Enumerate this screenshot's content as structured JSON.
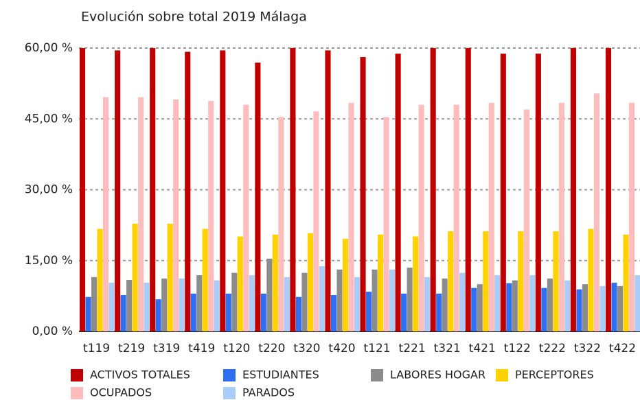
{
  "chart_data": {
    "type": "bar",
    "title": "Evolución sobre total 2019 Málaga",
    "categories": [
      "t119",
      "t219",
      "t319",
      "t419",
      "t120",
      "t220",
      "t320",
      "t420",
      "t121",
      "t221",
      "t321",
      "t421",
      "t122",
      "t222",
      "t322",
      "t422"
    ],
    "series": [
      {
        "name": "ACTIVOS TOTALES",
        "color": "#c00000",
        "values": [
          60,
          59.5,
          60,
          59.2,
          59.5,
          56.9,
          60,
          59.5,
          58.1,
          58.8,
          60,
          60,
          58.8,
          58.8,
          60,
          60
        ]
      },
      {
        "name": "ESTUDIANTES",
        "color": "#2f6ff0",
        "values": [
          7.3,
          7.7,
          6.8,
          8.0,
          8.0,
          8.0,
          7.3,
          7.7,
          8.4,
          8.0,
          8.0,
          9.2,
          10.2,
          9.2,
          8.9,
          10.3
        ]
      },
      {
        "name": "LABORES HOGAR",
        "color": "#8c8c8c",
        "values": [
          11.5,
          10.9,
          11.2,
          11.9,
          12.4,
          15.4,
          12.4,
          13.1,
          13.1,
          13.5,
          11.2,
          10.0,
          10.8,
          11.2,
          10.0,
          9.6
        ]
      },
      {
        "name": "PERCEPTORES",
        "color": "#ffd200",
        "values": [
          21.7,
          22.8,
          22.8,
          21.7,
          20.1,
          20.5,
          20.8,
          19.6,
          20.5,
          20.1,
          21.2,
          21.2,
          21.2,
          21.2,
          21.7,
          20.5
        ]
      },
      {
        "name": "OCUPADOS",
        "color": "#ffbcbc",
        "values": [
          49.6,
          49.6,
          49.1,
          48.8,
          48.0,
          45.4,
          46.6,
          48.4,
          45.4,
          48.0,
          48.0,
          48.4,
          47.0,
          48.4,
          50.4,
          48.4
        ]
      },
      {
        "name": "PARADOS",
        "color": "#a9cdf7",
        "values": [
          10.3,
          10.3,
          11.2,
          10.8,
          11.9,
          11.5,
          13.8,
          11.5,
          13.1,
          11.5,
          12.4,
          11.9,
          11.9,
          10.8,
          9.6,
          11.9
        ]
      }
    ],
    "ylim": [
      0,
      60
    ],
    "yticks": [
      {
        "value": 0,
        "label": "0,00 %"
      },
      {
        "value": 15,
        "label": "15,00 %"
      },
      {
        "value": 30,
        "label": "30,00 %"
      },
      {
        "value": 45,
        "label": "45,00 %"
      },
      {
        "value": 60,
        "label": "60,00 %"
      }
    ],
    "grid": true
  }
}
